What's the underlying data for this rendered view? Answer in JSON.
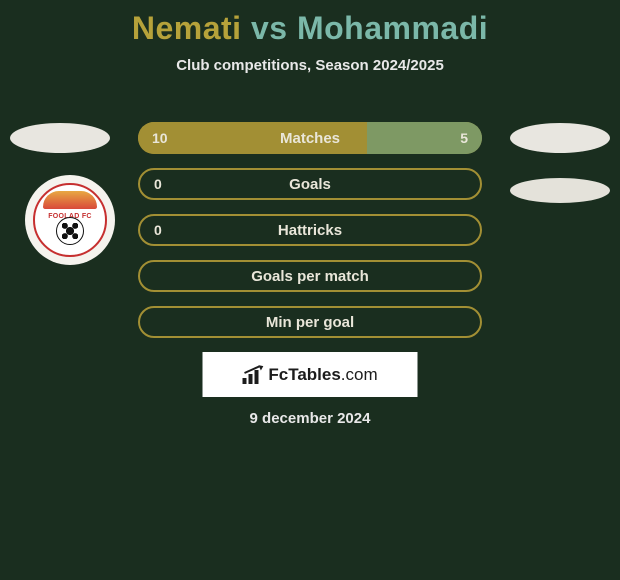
{
  "title": {
    "player1": "Nemati",
    "vs": "vs",
    "player2": "Mohammadi",
    "color_player1": "#b6a23a",
    "color_vs": "#7bb8a9",
    "color_player2": "#7bb8a9"
  },
  "subtitle": "Club competitions, Season 2024/2025",
  "date": "9 december 2024",
  "brand": {
    "bold": "FcTables",
    "light": ".com"
  },
  "club_logo": {
    "name": "FOOLAD FC"
  },
  "colors": {
    "bar_fill": "#a28f34",
    "bar_outline": "#a28f34",
    "bar_outline_bg": "#1a2e1f",
    "right_segment": "#7e9964",
    "text": "#e9e6d9",
    "badge": "#e8e6e0"
  },
  "bars": [
    {
      "label": "Matches",
      "left_value": "10",
      "right_value": "5",
      "type": "split",
      "left_pct": 66.7,
      "right_pct": 33.3
    },
    {
      "label": "Goals",
      "left_value": "0",
      "right_value": "",
      "type": "outline"
    },
    {
      "label": "Hattricks",
      "left_value": "0",
      "right_value": "",
      "type": "outline"
    },
    {
      "label": "Goals per match",
      "left_value": "",
      "right_value": "",
      "type": "outline"
    },
    {
      "label": "Min per goal",
      "left_value": "",
      "right_value": "",
      "type": "outline"
    }
  ]
}
